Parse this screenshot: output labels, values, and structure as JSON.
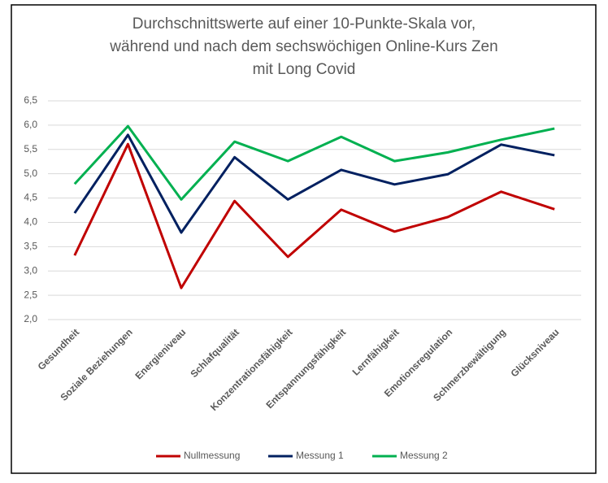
{
  "chart_data": {
    "type": "line",
    "title": [
      "Durchschnittswerte auf einer 10-Punkte-Skala vor,",
      "während und nach dem sechswöchigen Online-Kurs Zen",
      "mit Long Covid"
    ],
    "categories": [
      "Gesundheit",
      "Soziale Beziehungen",
      "Energieniveau",
      "Schlafqualität",
      "Konzentrationsfähigkeit",
      "Entspannungsfähigkeit",
      "Lernfähigkeit",
      "Emotionsregulation",
      "Schmerzbewältigung",
      "Glücksniveau"
    ],
    "series": [
      {
        "name": "Nullmessung",
        "color": "#c00000",
        "values": [
          3.32,
          5.61,
          2.65,
          4.44,
          3.29,
          4.26,
          3.81,
          4.11,
          4.63,
          4.27
        ]
      },
      {
        "name": "Messung 1",
        "color": "#002060",
        "values": [
          4.19,
          5.8,
          3.79,
          5.34,
          4.47,
          5.08,
          4.78,
          4.99,
          5.6,
          5.38
        ]
      },
      {
        "name": "Messung 2",
        "color": "#00b050",
        "values": [
          4.79,
          5.98,
          4.47,
          5.66,
          5.26,
          5.76,
          5.26,
          5.44,
          5.7,
          5.93
        ]
      }
    ],
    "ylim": [
      2.0,
      6.5
    ],
    "yticks": [
      {
        "value": 2.0,
        "label": "2,0"
      },
      {
        "value": 2.5,
        "label": "2,5"
      },
      {
        "value": 3.0,
        "label": "3,0"
      },
      {
        "value": 3.5,
        "label": "3,5"
      },
      {
        "value": 4.0,
        "label": "4,0"
      },
      {
        "value": 4.5,
        "label": "4,5"
      },
      {
        "value": 5.0,
        "label": "5,0"
      },
      {
        "value": 5.5,
        "label": "5,5"
      },
      {
        "value": 6.0,
        "label": "6,0"
      },
      {
        "value": 6.5,
        "label": "6,5"
      }
    ],
    "grid": true,
    "legend": "bottom"
  }
}
